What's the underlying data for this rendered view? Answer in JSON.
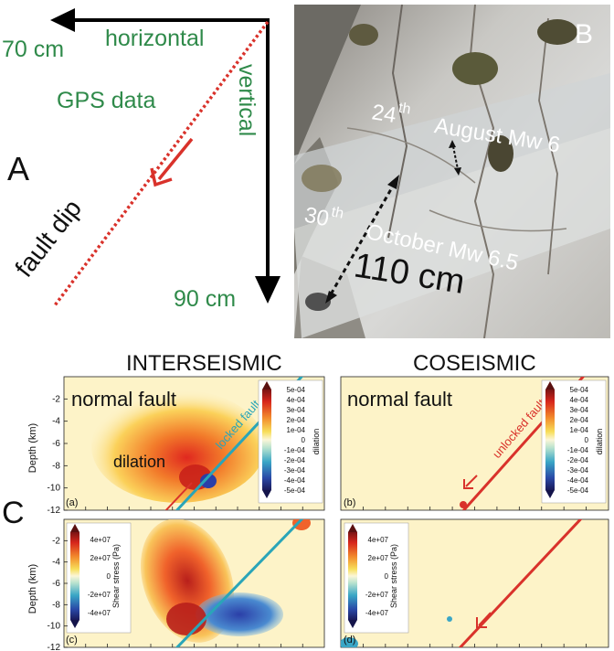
{
  "panel_a": {
    "letter": "A",
    "horizontal_label": "horizontal",
    "horizontal_value": "70 cm",
    "vertical_label": "vertical",
    "vertical_value": "90 cm",
    "gps_label": "GPS data",
    "fault_label": "fault dip"
  },
  "panel_b": {
    "letter": "B",
    "event1_day": "24",
    "event1_sup": "th",
    "event1_text": "August Mw 6",
    "event2_day": "30",
    "event2_sup": "th",
    "event2_text": "October Mw 6.5",
    "offset": "110 cm"
  },
  "panel_c": {
    "letter": "C",
    "col_left": "INTERSEISMIC",
    "col_right": "COSEISMIC",
    "normal_fault": "normal fault",
    "locked": "locked fault",
    "unlocked": "unlocked fault",
    "dilation_label": "dilation",
    "depth_label": "Depth (km)",
    "depth_ticks": [
      "-2",
      "-4",
      "-6",
      "-8",
      "-10",
      "-12"
    ],
    "sub_a": "(a)",
    "sub_b": "(b)",
    "sub_c": "(c)",
    "sub_d": "(d)",
    "cb_dilation_ticks": [
      "5e-04",
      "4e-04",
      "3e-04",
      "2e-04",
      "1e-04",
      "0",
      "-1e-04",
      "-2e-04",
      "-3e-04",
      "-4e-04",
      "-5e-04"
    ],
    "cb_dilation_title": "dilation",
    "cb_shear_ticks": [
      "4e+07",
      "2e+07",
      "0",
      "-2e+07",
      "-4e+07"
    ],
    "cb_shear_title": "Shear stress (Pa)"
  },
  "colors": {
    "green_text": "#2f8a4a",
    "fault_red": "#d9322b",
    "locked_teal": "#2aa5b8"
  }
}
